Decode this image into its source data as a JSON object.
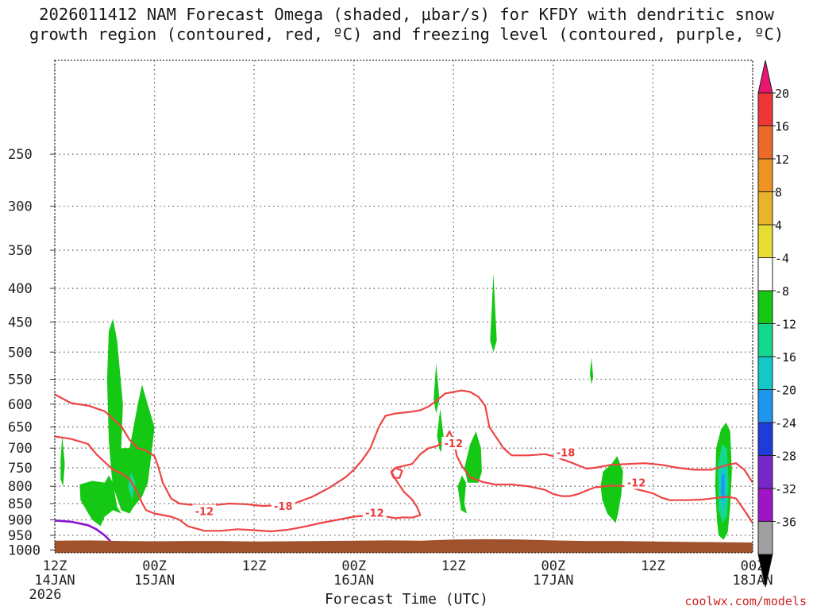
{
  "title_line1": "2026011412 NAM Forecast Omega (shaded, μbar/s) for KFDY with dendritic snow",
  "title_line2": "growth region (contoured, red, ºC) and freezing level (contoured, purple, ºC)",
  "credit": "coolwx.com/models",
  "chart_data": {
    "type": "contour",
    "xlabel": "Forecast Time (UTC)",
    "x_range_hours": [
      0,
      84
    ],
    "x_ticks": [
      {
        "hour": 0,
        "label": "12Z",
        "sub": "14JAN",
        "sub2": "2026"
      },
      {
        "hour": 12,
        "label": "00Z",
        "sub": "15JAN",
        "sub2": ""
      },
      {
        "hour": 24,
        "label": "12Z",
        "sub": "",
        "sub2": ""
      },
      {
        "hour": 36,
        "label": "00Z",
        "sub": "16JAN",
        "sub2": ""
      },
      {
        "hour": 48,
        "label": "12Z",
        "sub": "",
        "sub2": ""
      },
      {
        "hour": 60,
        "label": "00Z",
        "sub": "17JAN",
        "sub2": ""
      },
      {
        "hour": 72,
        "label": "12Z",
        "sub": "",
        "sub2": ""
      },
      {
        "hour": 84,
        "label": "00Z",
        "sub": "18JAN",
        "sub2": ""
      }
    ],
    "y_ticks": [
      250,
      300,
      350,
      400,
      450,
      500,
      550,
      600,
      650,
      700,
      750,
      800,
      850,
      900,
      950,
      1000
    ],
    "grid": true,
    "colorbar": {
      "labels": [
        "20",
        "16",
        "12",
        "8",
        "4",
        "-4",
        "-8",
        "-12",
        "-16",
        "-20",
        "-24",
        "-28",
        "-32",
        "-36"
      ],
      "colors": [
        "#e8166e",
        "#ee3636",
        "#ee6a2a",
        "#ee9222",
        "#e8b42c",
        "#e6dc32",
        "#ffffff",
        "#14c814",
        "#14d88c",
        "#14c8c8",
        "#1e96f0",
        "#1e3cdc",
        "#7828c8",
        "#a014c8",
        "#a0a0a0",
        "#000000"
      ],
      "top_triangle": "#e8166e",
      "bottom_triangle": "#000000"
    },
    "omega_regions": [
      {
        "level": "-4",
        "color": "#14c814",
        "points": [
          [
            0.7,
            730
          ],
          [
            0.9,
            670
          ],
          [
            1.2,
            740
          ],
          [
            1.0,
            800
          ],
          [
            0.7,
            780
          ]
        ]
      },
      {
        "level": "-4",
        "color": "#14c814",
        "points": [
          [
            3.0,
            795
          ],
          [
            4.5,
            785
          ],
          [
            6.0,
            790
          ],
          [
            6.5,
            770
          ],
          [
            7.0,
            790
          ],
          [
            7.5,
            860
          ],
          [
            8.0,
            880
          ],
          [
            7.0,
            870
          ],
          [
            6.0,
            890
          ],
          [
            5.5,
            920
          ],
          [
            4.5,
            900
          ],
          [
            3.8,
            870
          ],
          [
            3.1,
            840
          ]
        ]
      },
      {
        "level": "-4",
        "color": "#14c814",
        "points": [
          [
            6.5,
            680
          ],
          [
            6.3,
            550
          ],
          [
            6.5,
            465
          ],
          [
            7.0,
            445
          ],
          [
            7.5,
            480
          ],
          [
            8.2,
            600
          ],
          [
            8.0,
            700
          ],
          [
            9.0,
            700
          ],
          [
            10.0,
            600
          ],
          [
            10.5,
            560
          ],
          [
            11.0,
            590
          ],
          [
            12.0,
            650
          ],
          [
            11.6,
            720
          ],
          [
            11.2,
            790
          ],
          [
            10.5,
            830
          ],
          [
            9.5,
            860
          ],
          [
            9.0,
            880
          ],
          [
            8.0,
            870
          ],
          [
            7.0,
            800
          ],
          [
            6.8,
            760
          ]
        ]
      },
      {
        "level": "-8",
        "color": "#14d88c",
        "points": [
          [
            8.8,
            800
          ],
          [
            9.2,
            760
          ],
          [
            9.7,
            790
          ],
          [
            9.3,
            840
          ]
        ]
      },
      {
        "level": "-4",
        "color": "#14c814",
        "points": [
          [
            45.6,
            590
          ],
          [
            45.9,
            520
          ],
          [
            46.3,
            590
          ],
          [
            45.9,
            620
          ]
        ]
      },
      {
        "level": "-4",
        "color": "#14c814",
        "points": [
          [
            46.0,
            670
          ],
          [
            46.4,
            610
          ],
          [
            46.9,
            690
          ],
          [
            46.4,
            710
          ]
        ]
      },
      {
        "level": "-4",
        "color": "#14c814",
        "points": [
          [
            48.5,
            800
          ],
          [
            49.0,
            770
          ],
          [
            49.5,
            790
          ],
          [
            49.3,
            850
          ],
          [
            49.6,
            880
          ],
          [
            48.9,
            870
          ]
        ]
      },
      {
        "level": "-4",
        "color": "#14c814",
        "points": [
          [
            49.3,
            750
          ],
          [
            50.0,
            690
          ],
          [
            50.7,
            660
          ],
          [
            51.3,
            700
          ],
          [
            51.4,
            760
          ],
          [
            51.0,
            790
          ],
          [
            49.7,
            790
          ]
        ]
      },
      {
        "level": "-4",
        "color": "#14c814",
        "points": [
          [
            52.4,
            480
          ],
          [
            52.8,
            380
          ],
          [
            53.2,
            480
          ],
          [
            52.8,
            500
          ]
        ]
      },
      {
        "level": "-4",
        "color": "#14c814",
        "points": [
          [
            64.4,
            540
          ],
          [
            64.6,
            510
          ],
          [
            64.8,
            545
          ],
          [
            64.6,
            560
          ]
        ]
      },
      {
        "level": "-4",
        "color": "#14c814",
        "points": [
          [
            65.7,
            800
          ],
          [
            66.0,
            760
          ],
          [
            67.0,
            740
          ],
          [
            67.7,
            720
          ],
          [
            68.4,
            760
          ],
          [
            68.2,
            820
          ],
          [
            67.8,
            880
          ],
          [
            67.5,
            910
          ],
          [
            66.5,
            880
          ],
          [
            65.9,
            840
          ]
        ]
      },
      {
        "level": "-4",
        "color": "#14c814",
        "points": [
          [
            79.7,
            900
          ],
          [
            79.5,
            800
          ],
          [
            79.6,
            700
          ],
          [
            80.2,
            655
          ],
          [
            80.8,
            640
          ],
          [
            81.3,
            660
          ],
          [
            81.5,
            760
          ],
          [
            81.3,
            860
          ],
          [
            81.0,
            940
          ],
          [
            80.5,
            965
          ],
          [
            79.9,
            950
          ]
        ]
      },
      {
        "level": "-8",
        "color": "#14d88c",
        "points": [
          [
            79.9,
            870
          ],
          [
            79.8,
            750
          ],
          [
            80.3,
            690
          ],
          [
            80.9,
            700
          ],
          [
            81.1,
            800
          ],
          [
            80.9,
            890
          ],
          [
            80.4,
            910
          ]
        ]
      },
      {
        "level": "-12",
        "color": "#14c8c8",
        "points": [
          [
            80.1,
            830
          ],
          [
            80.1,
            760
          ],
          [
            80.5,
            735
          ],
          [
            80.9,
            770
          ],
          [
            80.8,
            850
          ],
          [
            80.4,
            870
          ]
        ]
      },
      {
        "level": "-16",
        "color": "#1e96f0",
        "points": [
          [
            80.2,
            815
          ],
          [
            80.3,
            765
          ],
          [
            80.6,
            770
          ],
          [
            80.6,
            830
          ],
          [
            80.4,
            845
          ]
        ]
      }
    ],
    "dgz_contours": [
      {
        "level": "-12",
        "label": "-12",
        "points": [
          [
            0,
            580
          ],
          [
            2,
            598
          ],
          [
            4,
            603
          ],
          [
            6,
            615
          ],
          [
            8,
            648
          ],
          [
            9,
            680
          ],
          [
            10,
            700
          ],
          [
            11,
            706
          ],
          [
            12,
            720
          ],
          [
            12.5,
            750
          ],
          [
            13,
            790
          ],
          [
            14,
            835
          ],
          [
            15,
            850
          ],
          [
            17,
            855
          ],
          [
            19,
            855
          ],
          [
            21,
            850
          ],
          [
            23,
            852
          ],
          [
            25,
            857
          ],
          [
            27,
            855
          ],
          [
            29,
            848
          ],
          [
            31,
            830
          ],
          [
            33,
            805
          ],
          [
            35,
            775
          ],
          [
            36,
            755
          ],
          [
            37,
            730
          ],
          [
            38,
            700
          ],
          [
            39,
            650
          ],
          [
            39.8,
            625
          ],
          [
            41,
            620
          ],
          [
            43,
            616
          ],
          [
            44,
            613
          ],
          [
            45,
            605
          ],
          [
            46,
            592
          ],
          [
            47,
            578
          ],
          [
            48,
            575
          ],
          [
            49,
            572
          ],
          [
            50,
            575
          ],
          [
            51,
            585
          ],
          [
            51.8,
            603
          ],
          [
            52,
            620
          ],
          [
            52.3,
            650
          ],
          [
            53,
            670
          ],
          [
            54,
            700
          ],
          [
            55,
            718
          ],
          [
            57,
            718
          ],
          [
            59,
            715
          ],
          [
            60,
            720
          ],
          [
            62,
            735
          ],
          [
            64,
            752
          ],
          [
            65,
            750
          ],
          [
            67,
            742
          ],
          [
            69,
            740
          ],
          [
            71,
            738
          ],
          [
            73,
            742
          ],
          [
            75,
            750
          ],
          [
            77,
            755
          ],
          [
            79,
            755
          ],
          [
            81,
            742
          ],
          [
            82,
            738
          ],
          [
            83,
            755
          ],
          [
            84,
            790
          ]
        ]
      },
      {
        "level": "-12",
        "label": "-12",
        "points": [
          [
            0,
            672
          ],
          [
            2,
            678
          ],
          [
            4,
            690
          ],
          [
            5,
            715
          ],
          [
            6,
            735
          ],
          [
            7,
            755
          ],
          [
            8,
            765
          ],
          [
            9,
            780
          ],
          [
            9.5,
            800
          ],
          [
            10,
            820
          ],
          [
            10.5,
            848
          ],
          [
            11,
            870
          ],
          [
            12,
            880
          ],
          [
            14,
            890
          ],
          [
            15,
            900
          ],
          [
            16,
            920
          ],
          [
            18,
            935
          ],
          [
            20,
            935
          ],
          [
            22,
            930
          ],
          [
            24,
            933
          ],
          [
            26,
            937
          ],
          [
            28,
            932
          ],
          [
            30,
            922
          ],
          [
            32,
            910
          ],
          [
            34,
            900
          ],
          [
            35,
            895
          ],
          [
            36,
            890
          ],
          [
            38,
            885
          ],
          [
            40,
            890
          ],
          [
            41,
            895
          ],
          [
            42,
            892
          ],
          [
            43,
            893
          ],
          [
            44,
            885
          ],
          [
            43.6,
            860
          ],
          [
            43,
            838
          ],
          [
            42,
            815
          ],
          [
            41,
            780
          ],
          [
            40.5,
            760
          ],
          [
            41,
            750
          ],
          [
            42,
            745
          ],
          [
            43,
            740
          ],
          [
            44,
            715
          ],
          [
            45,
            700
          ],
          [
            46,
            695
          ],
          [
            47,
            680
          ],
          [
            47.5,
            660
          ],
          [
            48,
            680
          ],
          [
            48.4,
            720
          ],
          [
            49,
            745
          ],
          [
            50,
            775
          ],
          [
            51.5,
            788
          ],
          [
            53,
            795
          ],
          [
            55,
            795
          ],
          [
            57,
            800
          ],
          [
            59,
            810
          ],
          [
            60,
            822
          ],
          [
            61,
            828
          ],
          [
            62,
            828
          ],
          [
            63,
            822
          ],
          [
            64,
            812
          ],
          [
            65,
            803
          ],
          [
            67,
            798
          ],
          [
            69,
            800
          ],
          [
            70,
            808
          ],
          [
            72,
            820
          ],
          [
            73,
            832
          ],
          [
            74,
            840
          ],
          [
            76,
            840
          ],
          [
            78,
            838
          ],
          [
            80,
            832
          ],
          [
            81,
            830
          ],
          [
            82,
            835
          ],
          [
            83,
            870
          ],
          [
            84,
            910
          ]
        ]
      },
      {
        "level": "-12",
        "label": "",
        "points": [
          [
            40.5,
            763
          ],
          [
            41,
            750
          ],
          [
            41.8,
            758
          ],
          [
            41.5,
            777
          ],
          [
            40.8,
            777
          ],
          [
            40.5,
            763
          ]
        ]
      }
    ],
    "freezing_level": [
      [
        0,
        902
      ],
      [
        2,
        906
      ],
      [
        4,
        917
      ],
      [
        5,
        930
      ],
      [
        6,
        950
      ],
      [
        6.7,
        970
      ]
    ],
    "contour_labels": [
      {
        "x": 48.0,
        "y": 690,
        "text": "-12"
      },
      {
        "x": 18.0,
        "y": 875,
        "text": "-12"
      },
      {
        "x": 38.5,
        "y": 880,
        "text": "-12"
      },
      {
        "x": 27.5,
        "y": 860,
        "text": "-18"
      },
      {
        "x": 61.5,
        "y": 712,
        "text": "-18"
      },
      {
        "x": 70.0,
        "y": 792,
        "text": "-12"
      }
    ]
  }
}
